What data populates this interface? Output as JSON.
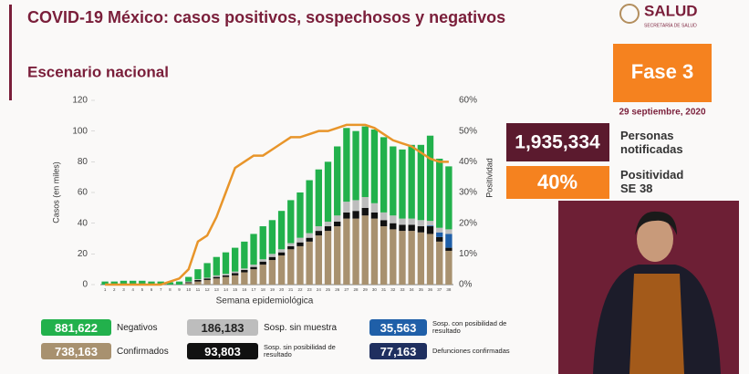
{
  "header": {
    "title": "COVID-19 México: casos positivos, sospechosos y negativos",
    "subtitle": "Escenario nacional",
    "logo": "SALUD",
    "logo_sub": "SECRETARÍA DE SALUD"
  },
  "phase": {
    "label": "Fase 3",
    "date": "29 septiembre, 2020"
  },
  "stats": [
    {
      "value": "1,935,334",
      "label": "Personas notificadas"
    },
    {
      "value": "40%",
      "label": "Positividad SE 38"
    }
  ],
  "chart_data": {
    "type": "bar",
    "stacked": true,
    "y_label": "Casos (en miles)",
    "y2_label": "Positividad",
    "x_label": "Semana epidemiológica",
    "categories": [
      "1",
      "2",
      "3",
      "4",
      "5",
      "6",
      "7",
      "8",
      "9",
      "10",
      "11",
      "12",
      "13",
      "14",
      "15",
      "16",
      "17",
      "18",
      "19",
      "20",
      "21",
      "22",
      "23",
      "24",
      "25",
      "26",
      "27",
      "28",
      "29",
      "30",
      "31",
      "32",
      "33",
      "34",
      "35",
      "36",
      "37",
      "38"
    ],
    "ylim": [
      0,
      120
    ],
    "yticks": [
      0,
      20,
      40,
      60,
      80,
      100,
      120
    ],
    "y2lim": [
      0,
      60
    ],
    "y2ticks": [
      {
        "value": 0,
        "label": "0%"
      },
      {
        "value": 10,
        "label": "10%"
      },
      {
        "value": 20,
        "label": "20%"
      },
      {
        "value": 30,
        "label": "30%"
      },
      {
        "value": 40,
        "label": "40%"
      },
      {
        "value": 50,
        "label": "50%"
      },
      {
        "value": 60,
        "label": "60%"
      }
    ],
    "series": [
      {
        "name": "Confirmados",
        "color": "#a8916f",
        "values": [
          0,
          0,
          0,
          0,
          0,
          0,
          0,
          0,
          0,
          1,
          2,
          3,
          4,
          5,
          6,
          8,
          10,
          13,
          16,
          19,
          23,
          25,
          28,
          32,
          35,
          38,
          43,
          43,
          45,
          43,
          38,
          36,
          35,
          35,
          34,
          33,
          28,
          22
        ]
      },
      {
        "name": "Sosp. sin posibilidad de resultado",
        "color": "#111111",
        "values": [
          0,
          0,
          0,
          0,
          0,
          0,
          0,
          0,
          0,
          0.5,
          1,
          1,
          1,
          1,
          1.5,
          1.5,
          1.5,
          2,
          2,
          2,
          2,
          2.5,
          2.5,
          3,
          3,
          3,
          4,
          5,
          5,
          4,
          4,
          4,
          4,
          4,
          4,
          5,
          3,
          2
        ]
      },
      {
        "name": "Sosp. con posibilidad de resultado",
        "color": "#1f5fa8",
        "values": [
          0,
          0,
          0,
          0,
          0,
          0,
          0,
          0,
          0,
          0,
          0,
          0,
          0,
          0,
          0,
          0,
          0,
          0,
          0,
          0,
          0,
          0,
          0,
          0,
          0,
          0,
          0,
          0,
          0,
          0,
          0,
          0,
          0,
          0,
          0,
          0.5,
          3,
          9
        ]
      },
      {
        "name": "Sosp. sin muestra",
        "color": "#bdbdbd",
        "values": [
          0,
          0,
          0,
          0,
          0,
          0,
          0,
          0,
          0,
          0.5,
          0.5,
          0.5,
          1,
          1,
          1,
          1,
          1.5,
          1.5,
          2,
          2,
          2,
          3,
          3,
          3,
          3,
          4,
          7,
          7,
          7,
          6,
          5,
          5,
          4,
          4,
          4,
          3,
          3,
          3
        ]
      },
      {
        "name": "Negativos",
        "color": "#22b14c",
        "values": [
          2,
          2,
          2.5,
          2.5,
          2.5,
          2,
          2,
          1.5,
          2,
          3,
          6.5,
          9.5,
          12,
          14,
          15.5,
          17.5,
          20,
          21.5,
          22,
          25,
          28,
          29.5,
          34.5,
          37,
          39,
          45,
          48,
          45,
          46,
          48,
          49,
          45,
          45,
          48,
          49,
          55.5,
          45,
          41
        ]
      },
      {
        "type": "line",
        "axis": "y2",
        "color": "#e8952a",
        "values": [
          0,
          0,
          0,
          0,
          0,
          0,
          0,
          1,
          2,
          5,
          14,
          16,
          22,
          30,
          38,
          40,
          42,
          42,
          44,
          46,
          48,
          48,
          49,
          50,
          50,
          51,
          52,
          52,
          52,
          51,
          49,
          47,
          46,
          45,
          43,
          41,
          40,
          40
        ]
      }
    ],
    "legend_totals": [
      "738,163",
      "93,803",
      "35,563",
      "186,183",
      "881,622"
    ]
  },
  "extra_stat": {
    "value": "77,163",
    "label": "Defunciones confirmadas",
    "color": "#1f2f5f"
  }
}
